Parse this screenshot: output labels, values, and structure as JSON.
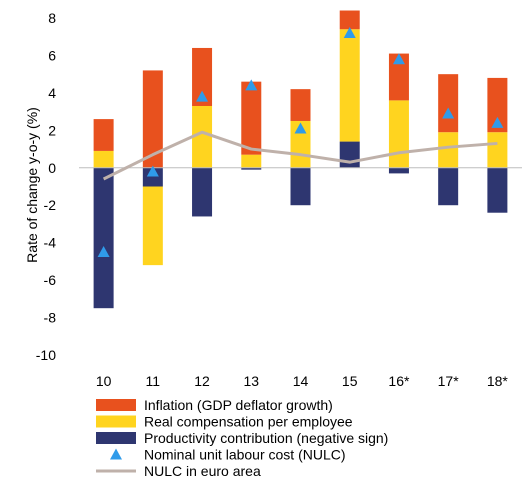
{
  "chart_data": {
    "type": "bar",
    "stacked": true,
    "categories": [
      "10",
      "11",
      "12",
      "13",
      "14",
      "15",
      "16*",
      "17*",
      "18*"
    ],
    "ylabel": "Rate of change y-o-y (%)",
    "xlabel": "",
    "ylim": [
      -10,
      8
    ],
    "yticks": [
      -10,
      -8,
      -6,
      -4,
      -2,
      0,
      2,
      4,
      6,
      8
    ],
    "grid": false,
    "legend_position": "bottom",
    "series": [
      {
        "name": "Productivity contribution (negative sign)",
        "kind": "bar",
        "color": "#2e3670",
        "values": [
          -7.5,
          -1.0,
          -2.6,
          -0.1,
          -2.0,
          0.0,
          -0.3,
          -2.0,
          -2.4
        ]
      },
      {
        "name": "Real compensation per employee",
        "kind": "bar",
        "color": "#ffd41f",
        "values": [
          0.9,
          -4.2,
          3.3,
          0.7,
          2.5,
          6.0,
          3.6,
          1.9,
          1.9
        ]
      },
      {
        "name": "Inflation (GDP deflator growth)",
        "kind": "bar",
        "color": "#e8511e",
        "values": [
          1.7,
          5.2,
          3.1,
          3.9,
          1.7,
          1.0,
          2.5,
          3.1,
          2.9
        ]
      },
      {
        "name": "Nominal unit labour cost (NULC)",
        "kind": "marker",
        "color": "#2f9bea",
        "values": [
          -4.5,
          -0.2,
          3.8,
          4.4,
          2.1,
          7.2,
          5.8,
          2.9,
          2.4
        ]
      },
      {
        "name": "NULC in euro area",
        "kind": "line",
        "color": "#bfb1aa",
        "values": [
          -0.6,
          0.7,
          1.9,
          1.0,
          0.7,
          0.3,
          0.8,
          1.1,
          1.3
        ]
      }
    ],
    "stack_extra": {
      "15": {
        "productivity_contribution_positive": 1.4
      }
    }
  }
}
